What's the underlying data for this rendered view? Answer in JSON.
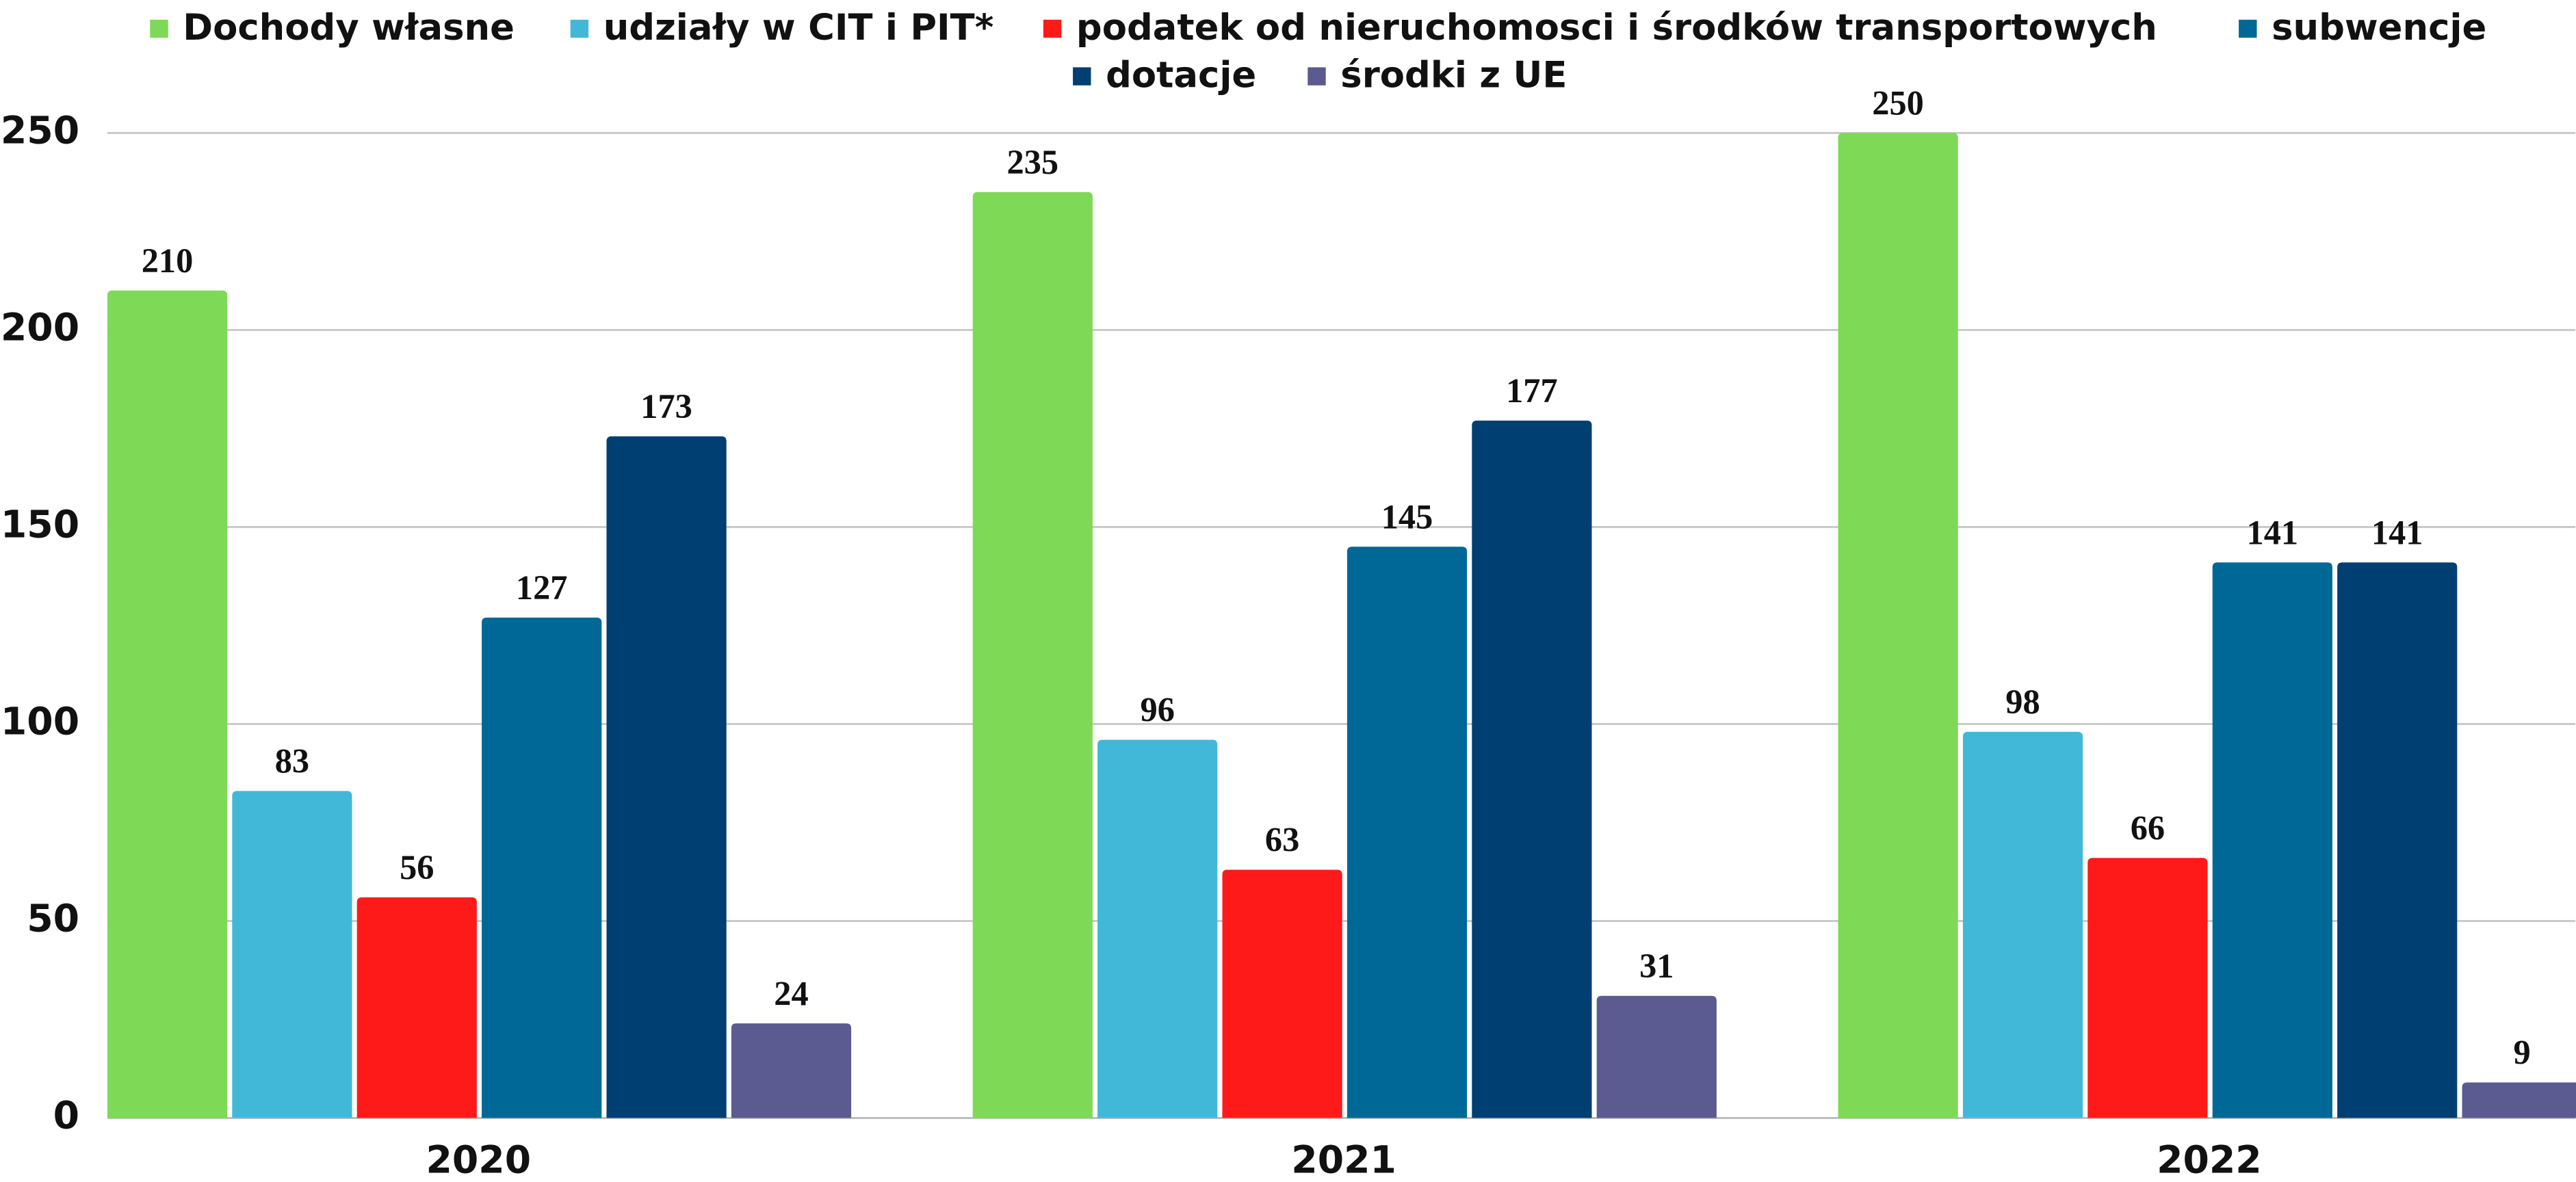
{
  "chart_data": {
    "type": "bar",
    "categories": [
      "2020",
      "2021",
      "2022"
    ],
    "series": [
      {
        "name": "Dochody własne",
        "color": "#7ed957",
        "values": [
          210,
          235,
          250
        ]
      },
      {
        "name": "udziały w CIT i PIT*",
        "color": "#42b8d8",
        "values": [
          83,
          96,
          98
        ]
      },
      {
        "name": "podatek od nieruchomosci i środków transportowych",
        "color": "#ff1a1a",
        "values": [
          56,
          63,
          66
        ]
      },
      {
        "name": "subwencje",
        "color": "#006896",
        "values": [
          127,
          145,
          141
        ]
      },
      {
        "name": "dotacje",
        "color": "#003f72",
        "values": [
          173,
          177,
          141
        ]
      },
      {
        "name": "środki z UE",
        "color": "#5b5b91",
        "values": [
          24,
          31,
          9
        ]
      }
    ],
    "ylim": [
      0,
      250
    ],
    "yticks": [
      0,
      50,
      100,
      150,
      200,
      250
    ],
    "grid": true,
    "legend": "top"
  }
}
